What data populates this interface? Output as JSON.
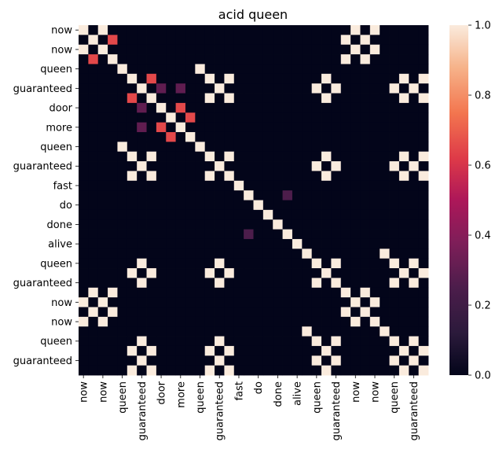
{
  "chart_data": {
    "type": "heatmap",
    "title": "acid queen",
    "labels": [
      "now",
      "now",
      "now",
      "now",
      "queen",
      "guaranteed",
      "guaranteed",
      "guaranteed",
      "door",
      "more",
      "more",
      "more",
      "queen",
      "guaranteed",
      "guaranteed",
      "guaranteed",
      "fast",
      "do",
      "do",
      "done",
      "done",
      "alive",
      "alive",
      "queen",
      "guaranteed",
      "guaranteed",
      "guaranteed",
      "now",
      "now",
      "now",
      "now",
      "queen",
      "guaranteed",
      "guaranteed",
      "guaranteed",
      "guaranteed"
    ],
    "ylabels_shown": [
      "now",
      "now",
      "queen",
      "guaranteed",
      "door",
      "more",
      "queen",
      "guaranteed",
      "fast",
      "do",
      "done",
      "alive",
      "queen",
      "guaranteed",
      "now",
      "now",
      "queen",
      "guaranteed"
    ],
    "xlabels_shown": [
      "now",
      "now",
      "queen",
      "guaranteed",
      "door",
      "more",
      "queen",
      "guaranteed",
      "fast",
      "do",
      "done",
      "alive",
      "queen",
      "guaranteed",
      "now",
      "now",
      "queen",
      "guaranteed"
    ],
    "colorbar": {
      "min": 0.0,
      "max": 1.0,
      "ticks": [
        "0.0",
        "0.2",
        "0.4",
        "0.6",
        "0.8",
        "1.0"
      ]
    },
    "colormap": "rocket",
    "matrix_note": "symmetric similarity matrix; diagonal = 1.0",
    "groups": {
      "now": [
        0,
        1,
        2,
        3,
        27,
        28,
        29,
        30
      ],
      "queen": [
        4,
        12,
        23,
        31
      ],
      "guaranteed": [
        5,
        6,
        7,
        13,
        14,
        15,
        24,
        25,
        26,
        32,
        33,
        34,
        35
      ],
      "door": [
        8
      ],
      "more": [
        9,
        10,
        11
      ],
      "fast": [
        16
      ],
      "do": [
        17,
        18
      ],
      "done": [
        19,
        20
      ],
      "alive": [
        21,
        22
      ]
    },
    "cells": [
      {
        "r": 0,
        "c": 1,
        "v": 0.0
      },
      {
        "r": 1,
        "c": 3,
        "v": 0.65
      },
      {
        "r": 3,
        "c": 1,
        "v": 0.65
      },
      {
        "r": 5,
        "c": 7,
        "v": 0.65
      },
      {
        "r": 7,
        "c": 5,
        "v": 0.65
      },
      {
        "r": 6,
        "c": 8,
        "v": 0.3
      },
      {
        "r": 8,
        "c": 6,
        "v": 0.3
      },
      {
        "r": 6,
        "c": 10,
        "v": 0.3
      },
      {
        "r": 10,
        "c": 6,
        "v": 0.3
      },
      {
        "r": 8,
        "c": 10,
        "v": 0.65
      },
      {
        "r": 10,
        "c": 8,
        "v": 0.65
      },
      {
        "r": 9,
        "c": 11,
        "v": 0.65
      },
      {
        "r": 11,
        "c": 9,
        "v": 0.65
      },
      {
        "r": 17,
        "c": 21,
        "v": 0.25
      },
      {
        "r": 21,
        "c": 17,
        "v": 0.25
      }
    ]
  }
}
